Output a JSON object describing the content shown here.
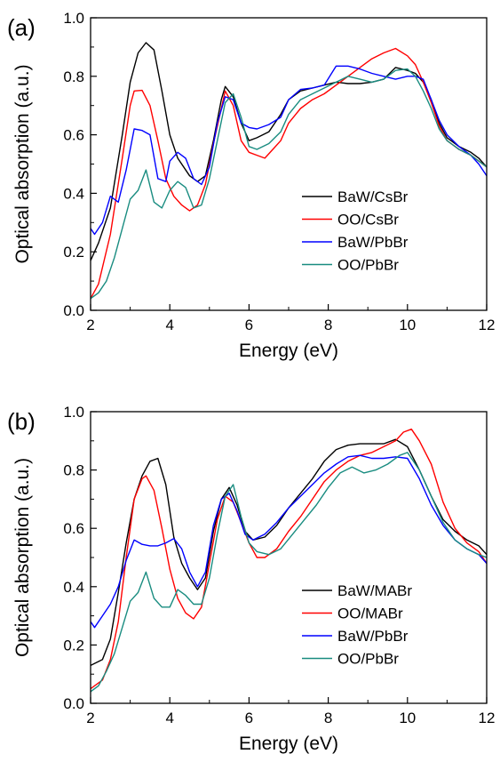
{
  "chart_data": [
    {
      "panel": "(a)",
      "type": "line",
      "title": "",
      "xlabel": "Energy (eV)",
      "ylabel": "Optical absorption (a.u.)",
      "xlim": [
        2,
        12
      ],
      "ylim": [
        0.0,
        1.0
      ],
      "xticks": [
        "2",
        "4",
        "6",
        "8",
        "10",
        "12"
      ],
      "yticks": [
        "0.0",
        "0.2",
        "0.4",
        "0.6",
        "0.8",
        "1.0"
      ],
      "grid": false,
      "legend_position": "center-right",
      "series": [
        {
          "name": "BaW/CsBr",
          "color": "#000000",
          "x": [
            2.0,
            2.2,
            2.5,
            2.8,
            3.0,
            3.2,
            3.4,
            3.6,
            3.8,
            4.0,
            4.2,
            4.5,
            4.7,
            4.9,
            5.1,
            5.3,
            5.4,
            5.6,
            5.8,
            6.0,
            6.2,
            6.5,
            6.8,
            7.0,
            7.3,
            7.6,
            7.9,
            8.2,
            8.5,
            8.8,
            9.1,
            9.4,
            9.7,
            10.0,
            10.2,
            10.4,
            10.6,
            10.8,
            11.0,
            11.3,
            11.6,
            11.8,
            12.0
          ],
          "y": [
            0.17,
            0.23,
            0.35,
            0.6,
            0.78,
            0.88,
            0.915,
            0.89,
            0.75,
            0.6,
            0.52,
            0.46,
            0.44,
            0.46,
            0.58,
            0.72,
            0.765,
            0.73,
            0.64,
            0.58,
            0.59,
            0.61,
            0.67,
            0.72,
            0.75,
            0.76,
            0.77,
            0.78,
            0.775,
            0.775,
            0.78,
            0.79,
            0.83,
            0.82,
            0.81,
            0.78,
            0.72,
            0.64,
            0.59,
            0.56,
            0.54,
            0.52,
            0.49
          ]
        },
        {
          "name": "OO/CsBr",
          "color": "#ff0000",
          "x": [
            2.0,
            2.2,
            2.5,
            2.8,
            3.0,
            3.1,
            3.3,
            3.5,
            3.7,
            3.9,
            4.1,
            4.3,
            4.5,
            4.7,
            4.9,
            5.1,
            5.3,
            5.4,
            5.6,
            5.8,
            6.0,
            6.2,
            6.4,
            6.6,
            6.8,
            7.0,
            7.3,
            7.6,
            7.9,
            8.2,
            8.5,
            8.8,
            9.1,
            9.4,
            9.7,
            10.0,
            10.2,
            10.4,
            10.6,
            10.8,
            11.0,
            11.3,
            11.6,
            11.8,
            12.0
          ],
          "y": [
            0.04,
            0.09,
            0.26,
            0.52,
            0.7,
            0.75,
            0.752,
            0.7,
            0.58,
            0.45,
            0.39,
            0.36,
            0.34,
            0.36,
            0.43,
            0.57,
            0.69,
            0.75,
            0.7,
            0.58,
            0.54,
            0.53,
            0.52,
            0.55,
            0.58,
            0.64,
            0.69,
            0.72,
            0.74,
            0.77,
            0.8,
            0.83,
            0.86,
            0.88,
            0.895,
            0.87,
            0.84,
            0.78,
            0.71,
            0.63,
            0.58,
            0.55,
            0.53,
            0.51,
            0.49
          ]
        },
        {
          "name": "BaW/PbBr",
          "color": "#0000ff",
          "x": [
            2.0,
            2.1,
            2.3,
            2.5,
            2.7,
            2.9,
            3.1,
            3.3,
            3.5,
            3.7,
            3.9,
            4.0,
            4.2,
            4.4,
            4.6,
            4.8,
            5.0,
            5.2,
            5.4,
            5.6,
            5.8,
            6.0,
            6.2,
            6.5,
            6.8,
            7.0,
            7.3,
            7.6,
            7.9,
            8.2,
            8.5,
            8.8,
            9.1,
            9.4,
            9.7,
            10.0,
            10.2,
            10.4,
            10.6,
            10.8,
            11.0,
            11.3,
            11.6,
            11.8,
            12.0
          ],
          "y": [
            0.28,
            0.26,
            0.3,
            0.39,
            0.37,
            0.48,
            0.62,
            0.615,
            0.6,
            0.45,
            0.44,
            0.51,
            0.54,
            0.52,
            0.45,
            0.43,
            0.49,
            0.64,
            0.73,
            0.72,
            0.64,
            0.625,
            0.62,
            0.635,
            0.66,
            0.72,
            0.755,
            0.76,
            0.77,
            0.835,
            0.835,
            0.825,
            0.81,
            0.8,
            0.79,
            0.8,
            0.8,
            0.79,
            0.72,
            0.65,
            0.6,
            0.56,
            0.53,
            0.5,
            0.46
          ]
        },
        {
          "name": "OO/PbBr",
          "color": "#198c80",
          "x": [
            2.0,
            2.2,
            2.4,
            2.6,
            2.8,
            3.0,
            3.2,
            3.4,
            3.6,
            3.8,
            4.0,
            4.2,
            4.4,
            4.6,
            4.8,
            5.0,
            5.2,
            5.4,
            5.6,
            5.8,
            6.0,
            6.2,
            6.5,
            6.8,
            7.0,
            7.3,
            7.6,
            7.9,
            8.2,
            8.5,
            8.8,
            9.1,
            9.4,
            9.7,
            10.0,
            10.2,
            10.4,
            10.6,
            10.8,
            11.0,
            11.3,
            11.6,
            11.8,
            12.0
          ],
          "y": [
            0.04,
            0.06,
            0.1,
            0.18,
            0.28,
            0.38,
            0.41,
            0.48,
            0.37,
            0.35,
            0.41,
            0.44,
            0.42,
            0.35,
            0.36,
            0.45,
            0.58,
            0.71,
            0.74,
            0.66,
            0.56,
            0.55,
            0.57,
            0.61,
            0.67,
            0.72,
            0.74,
            0.76,
            0.78,
            0.8,
            0.79,
            0.78,
            0.79,
            0.82,
            0.825,
            0.8,
            0.75,
            0.69,
            0.62,
            0.58,
            0.55,
            0.53,
            0.51,
            0.49
          ]
        }
      ]
    },
    {
      "panel": "(b)",
      "type": "line",
      "title": "",
      "xlabel": "Energy (eV)",
      "ylabel": "Optical absorption (a.u.)",
      "xlim": [
        2,
        12
      ],
      "ylim": [
        0.0,
        1.0
      ],
      "xticks": [
        "2",
        "4",
        "6",
        "8",
        "10",
        "12"
      ],
      "yticks": [
        "0.0",
        "0.2",
        "0.4",
        "0.6",
        "0.8",
        "1.0"
      ],
      "grid": false,
      "legend_position": "bottom-right",
      "series": [
        {
          "name": "BaW/MABr",
          "color": "#000000",
          "x": [
            2.0,
            2.3,
            2.5,
            2.7,
            2.9,
            3.1,
            3.3,
            3.5,
            3.7,
            3.9,
            4.1,
            4.3,
            4.5,
            4.7,
            4.9,
            5.1,
            5.3,
            5.5,
            5.7,
            5.9,
            6.1,
            6.4,
            6.7,
            7.0,
            7.3,
            7.6,
            7.9,
            8.2,
            8.5,
            8.8,
            9.1,
            9.4,
            9.7,
            10.0,
            10.3,
            10.6,
            10.9,
            11.2,
            11.5,
            11.8,
            12.0
          ],
          "y": [
            0.13,
            0.15,
            0.22,
            0.38,
            0.55,
            0.7,
            0.78,
            0.83,
            0.84,
            0.75,
            0.57,
            0.48,
            0.43,
            0.39,
            0.43,
            0.59,
            0.7,
            0.74,
            0.68,
            0.59,
            0.56,
            0.57,
            0.61,
            0.67,
            0.72,
            0.77,
            0.83,
            0.87,
            0.885,
            0.89,
            0.89,
            0.89,
            0.905,
            0.88,
            0.8,
            0.71,
            0.63,
            0.59,
            0.56,
            0.54,
            0.51
          ]
        },
        {
          "name": "OO/MABr",
          "color": "#ff0000",
          "x": [
            2.0,
            2.3,
            2.5,
            2.7,
            2.9,
            3.1,
            3.3,
            3.4,
            3.6,
            3.8,
            4.0,
            4.2,
            4.4,
            4.6,
            4.8,
            5.0,
            5.2,
            5.4,
            5.6,
            5.8,
            6.0,
            6.2,
            6.4,
            6.7,
            7.0,
            7.3,
            7.6,
            7.9,
            8.2,
            8.5,
            8.8,
            9.1,
            9.4,
            9.7,
            9.9,
            10.1,
            10.3,
            10.6,
            10.9,
            11.2,
            11.5,
            11.8,
            12.0
          ],
          "y": [
            0.05,
            0.08,
            0.15,
            0.28,
            0.5,
            0.7,
            0.77,
            0.78,
            0.73,
            0.6,
            0.46,
            0.36,
            0.31,
            0.29,
            0.33,
            0.48,
            0.63,
            0.71,
            0.69,
            0.62,
            0.55,
            0.5,
            0.5,
            0.53,
            0.59,
            0.64,
            0.7,
            0.76,
            0.8,
            0.83,
            0.85,
            0.86,
            0.88,
            0.9,
            0.93,
            0.94,
            0.9,
            0.82,
            0.69,
            0.6,
            0.55,
            0.52,
            0.48
          ]
        },
        {
          "name": "BaW/PbBr",
          "color": "#0000ff",
          "x": [
            2.0,
            2.1,
            2.3,
            2.5,
            2.7,
            2.9,
            3.1,
            3.3,
            3.5,
            3.7,
            3.9,
            4.1,
            4.3,
            4.5,
            4.7,
            4.9,
            5.1,
            5.3,
            5.5,
            5.7,
            5.9,
            6.1,
            6.4,
            6.7,
            7.0,
            7.3,
            7.6,
            7.9,
            8.2,
            8.5,
            8.8,
            9.1,
            9.4,
            9.7,
            10.0,
            10.3,
            10.6,
            10.9,
            11.2,
            11.5,
            11.8,
            12.0
          ],
          "y": [
            0.28,
            0.26,
            0.3,
            0.34,
            0.4,
            0.49,
            0.56,
            0.545,
            0.54,
            0.54,
            0.55,
            0.565,
            0.53,
            0.45,
            0.4,
            0.45,
            0.61,
            0.7,
            0.72,
            0.66,
            0.58,
            0.56,
            0.58,
            0.62,
            0.67,
            0.71,
            0.75,
            0.79,
            0.82,
            0.845,
            0.85,
            0.84,
            0.84,
            0.845,
            0.84,
            0.77,
            0.68,
            0.61,
            0.56,
            0.53,
            0.51,
            0.48
          ]
        },
        {
          "name": "OO/PbBr",
          "color": "#198c80",
          "x": [
            2.0,
            2.2,
            2.4,
            2.6,
            2.8,
            3.0,
            3.2,
            3.4,
            3.6,
            3.8,
            4.0,
            4.2,
            4.4,
            4.6,
            4.8,
            5.0,
            5.2,
            5.4,
            5.6,
            5.8,
            6.0,
            6.2,
            6.5,
            6.8,
            7.1,
            7.4,
            7.7,
            8.0,
            8.3,
            8.6,
            8.9,
            9.2,
            9.5,
            9.8,
            10.0,
            10.3,
            10.6,
            10.9,
            11.2,
            11.5,
            11.8,
            12.0
          ],
          "y": [
            0.04,
            0.06,
            0.11,
            0.17,
            0.26,
            0.35,
            0.38,
            0.45,
            0.36,
            0.33,
            0.33,
            0.39,
            0.37,
            0.34,
            0.34,
            0.43,
            0.58,
            0.71,
            0.75,
            0.64,
            0.55,
            0.52,
            0.51,
            0.53,
            0.58,
            0.63,
            0.68,
            0.74,
            0.79,
            0.81,
            0.79,
            0.8,
            0.82,
            0.85,
            0.86,
            0.8,
            0.71,
            0.62,
            0.56,
            0.53,
            0.51,
            0.5
          ]
        }
      ]
    }
  ]
}
